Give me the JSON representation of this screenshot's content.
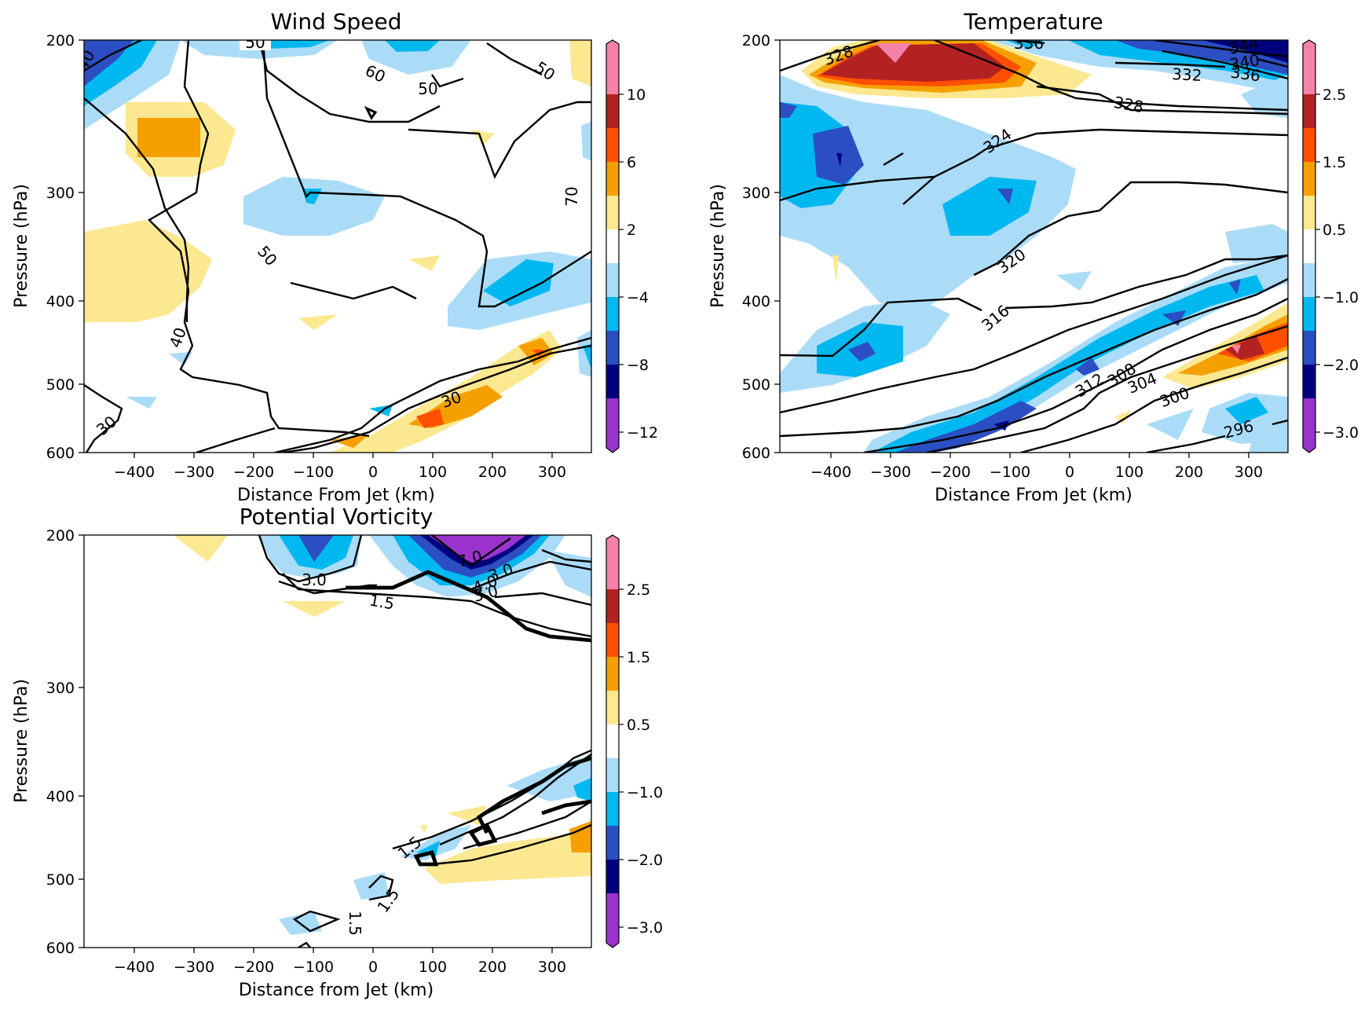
{
  "chart_data": [
    {
      "type": "contour",
      "title": "Wind Speed",
      "xlabel": "Distance From Jet (km)",
      "ylabel": "Pressure (hPa)",
      "xlim": [
        -490,
        365
      ],
      "ylim": [
        600,
        200
      ],
      "y_scale": "log",
      "x_ticks": [
        "−400",
        "−300",
        "−200",
        "−100",
        "0",
        "100",
        "200",
        "300"
      ],
      "y_ticks": [
        "200",
        "300",
        "400",
        "500",
        "600"
      ],
      "colorbar": {
        "levels": [
          -12,
          -10,
          -8,
          -6,
          -4,
          -2,
          2,
          4,
          6,
          8,
          10,
          12
        ],
        "tick_labels": [
          "−12",
          "−8",
          "−4",
          "2",
          "6",
          "10"
        ],
        "extend": "both"
      },
      "contour_labels": [
        "50",
        "60",
        "50",
        "50",
        "70",
        "40",
        "50",
        "40",
        "30",
        "30"
      ]
    },
    {
      "type": "contour",
      "title": "Temperature",
      "xlabel": "Distance From Jet (km)",
      "ylabel": "Pressure (hPa)",
      "xlim": [
        -490,
        365
      ],
      "ylim": [
        600,
        200
      ],
      "y_scale": "log",
      "x_ticks": [
        "−400",
        "−300",
        "−200",
        "−100",
        "0",
        "100",
        "200",
        "300"
      ],
      "y_ticks": [
        "200",
        "300",
        "400",
        "500",
        "600"
      ],
      "colorbar": {
        "levels": [
          -3.0,
          -2.5,
          -2.0,
          -1.5,
          -1.0,
          -0.5,
          0.5,
          1.0,
          1.5,
          2.0,
          2.5,
          3.0
        ],
        "tick_labels": [
          "−3.0",
          "−2.0",
          "−1.0",
          "0.5",
          "1.5",
          "2.5"
        ],
        "extend": "both"
      },
      "contour_labels": [
        "328",
        "336",
        "344",
        "340",
        "336",
        "332",
        "328",
        "324",
        "320",
        "316",
        "312",
        "308",
        "304",
        "300",
        "296"
      ]
    },
    {
      "type": "contour",
      "title": "Potential Vorticity",
      "xlabel": "Distance from Jet (km)",
      "ylabel": "Pressure (hPa)",
      "xlim": [
        -490,
        365
      ],
      "ylim": [
        600,
        200
      ],
      "y_scale": "log",
      "x_ticks": [
        "−400",
        "−300",
        "−200",
        "−100",
        "0",
        "100",
        "200",
        "300"
      ],
      "y_ticks": [
        "200",
        "300",
        "400",
        "500",
        "600"
      ],
      "colorbar": {
        "levels": [
          -3.0,
          -2.5,
          -2.0,
          -1.5,
          -1.0,
          -0.5,
          0.5,
          1.0,
          1.5,
          2.0,
          2.5,
          3.0
        ],
        "tick_labels": [
          "−3.0",
          "−2.0",
          "−1.0",
          "0.5",
          "1.5",
          "2.5"
        ],
        "extend": "both"
      },
      "contour_labels": [
        "7.0",
        "3.0",
        "4.0",
        "3.0",
        "1.5",
        "1.5",
        "1.5",
        "1.5"
      ]
    }
  ],
  "colors": {
    "neg_extend": "#9933cc",
    "neg_5": "#00007f",
    "neg_4": "#2b4fc2",
    "neg_3": "#00b8f0",
    "neg_2": "#aadcf8",
    "neutral": "#ffffff",
    "pos_2": "#fbe890",
    "pos_3": "#f5a000",
    "pos_4": "#ff5000",
    "pos_5": "#b22222",
    "pos_extend": "#f582a8"
  }
}
